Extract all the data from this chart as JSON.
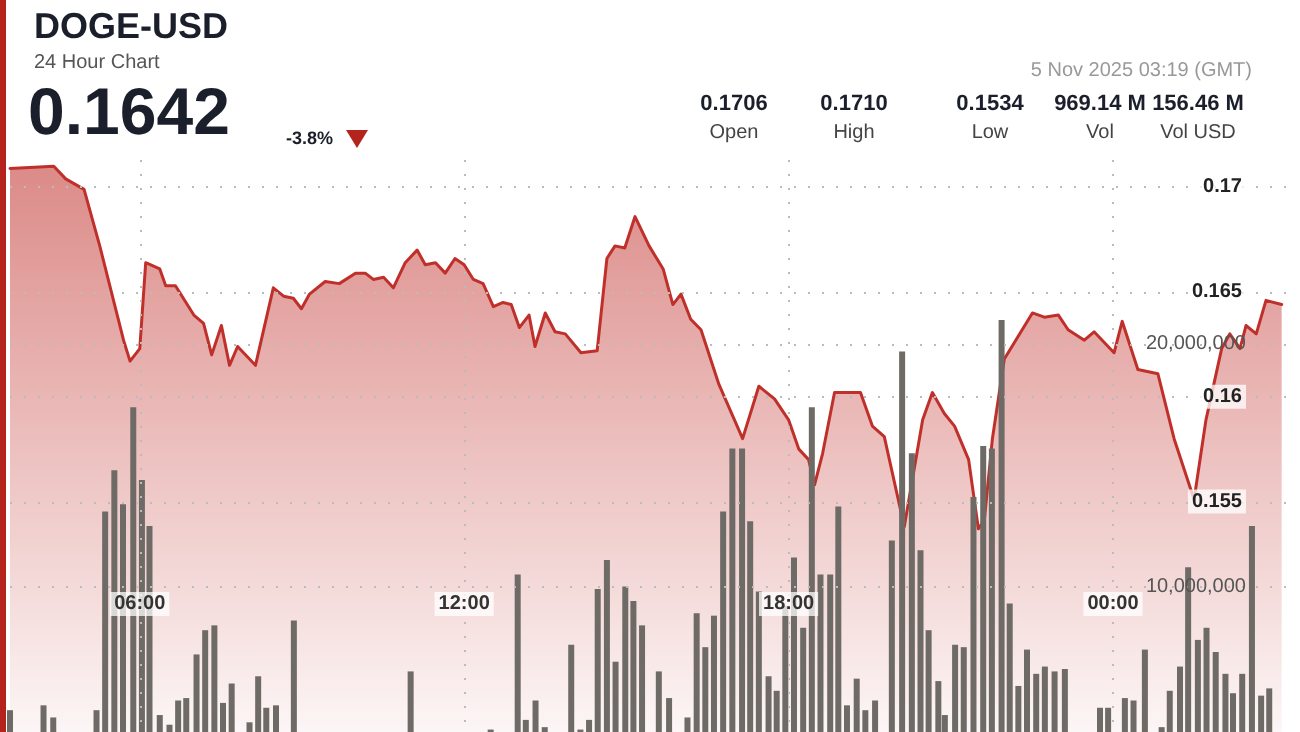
{
  "chart_data": {
    "type": "area",
    "title": "DOGE-USD",
    "subtitle": "24 Hour Chart",
    "annotations": [
      "0.1642",
      "-3.8%",
      "5 Nov 2025 03:19 (GMT)",
      "0.1706",
      "Open",
      "0.1710",
      "High",
      "0.1534",
      "Low",
      "969.14 M",
      "Vol",
      "156.46 M",
      "Vol USD"
    ],
    "xlim": [
      3.6,
      27.2
    ],
    "xticks": [
      {
        "value": 6,
        "label": "06:00"
      },
      {
        "value": 12,
        "label": "12:00"
      },
      {
        "value": 18,
        "label": "18:00"
      },
      {
        "value": 24,
        "label": "00:00"
      }
    ],
    "ylim": [
      0.144,
      0.1713
    ],
    "yticks": [
      0.155,
      0.16,
      0.165,
      0.17
    ],
    "y2lim": [
      4000000,
      27600000
    ],
    "y2ticks": [
      {
        "value": 10000000,
        "label": "10,000,000"
      },
      {
        "value": 20000000,
        "label": "20,000,000"
      }
    ],
    "grid": true,
    "marker": "none",
    "series": [
      {
        "color": "#c0302b",
        "x": [
          3.6,
          4.41,
          4.63,
          4.97,
          5.26,
          5.7,
          5.82,
          6.0,
          6.11,
          6.37,
          6.48,
          6.66,
          7.0,
          7.18,
          7.33,
          7.51,
          7.66,
          7.81,
          8.14,
          8.47,
          8.66,
          8.84,
          8.99,
          9.14,
          9.43,
          9.69,
          9.99,
          10.17,
          10.32,
          10.51,
          10.69,
          10.91,
          11.13,
          11.28,
          11.47,
          11.65,
          11.83,
          12.0,
          12.17,
          12.35,
          12.54,
          12.72,
          12.87,
          13.02,
          13.2,
          13.31,
          13.5,
          13.68,
          13.87,
          14.16,
          14.46,
          14.64,
          14.79,
          14.97,
          15.16,
          15.42,
          15.68,
          15.86,
          16.01,
          16.19,
          16.38,
          16.71,
          17.15,
          17.45,
          17.74,
          18.0,
          18.19,
          18.37,
          18.48,
          18.63,
          18.85,
          19.11,
          19.33,
          19.55,
          19.77,
          20.14,
          20.48,
          20.66,
          20.88,
          21.07,
          21.33,
          21.51,
          21.62,
          21.77,
          21.99,
          22.51,
          22.73,
          22.99,
          23.17,
          23.47,
          23.65,
          23.8,
          24.02,
          24.17,
          24.46,
          24.83,
          25.13,
          25.5,
          25.72,
          26.01,
          26.16,
          26.35,
          26.46,
          26.65,
          26.83,
          27.12
        ],
        "values": [
          0.1709,
          0.171,
          0.1704,
          0.1699,
          0.1672,
          0.1627,
          0.1617,
          0.1623,
          0.1664,
          0.1661,
          0.1653,
          0.1653,
          0.1639,
          0.1635,
          0.162,
          0.1634,
          0.1615,
          0.1624,
          0.1615,
          0.1652,
          0.1648,
          0.1647,
          0.1642,
          0.1649,
          0.1655,
          0.1654,
          0.1659,
          0.1659,
          0.1656,
          0.1657,
          0.1652,
          0.1664,
          0.167,
          0.1663,
          0.1664,
          0.1659,
          0.1666,
          0.1663,
          0.1656,
          0.1654,
          0.1643,
          0.1645,
          0.1644,
          0.1633,
          0.1639,
          0.1624,
          0.164,
          0.1631,
          0.163,
          0.1621,
          0.1622,
          0.1666,
          0.1672,
          0.1671,
          0.1686,
          0.1672,
          0.1661,
          0.1644,
          0.1649,
          0.1637,
          0.1632,
          0.1606,
          0.158,
          0.1605,
          0.1599,
          0.1589,
          0.1575,
          0.157,
          0.1558,
          0.1573,
          0.1602,
          0.1602,
          0.1602,
          0.1586,
          0.1581,
          0.1538,
          0.1589,
          0.1602,
          0.1592,
          0.1586,
          0.157,
          0.1537,
          0.1541,
          0.158,
          0.1618,
          0.164,
          0.1638,
          0.1639,
          0.1632,
          0.1627,
          0.1631,
          0.1627,
          0.1621,
          0.1636,
          0.1613,
          0.1611,
          0.158,
          0.1551,
          0.1589,
          0.1623,
          0.163,
          0.1623,
          0.1634,
          0.163,
          0.1646,
          0.1644
        ]
      },
      {
        "type": "bar",
        "axis": "y2",
        "color": "#6e6a66",
        "x": [
          3.6,
          4.22,
          4.4,
          5.2,
          5.36,
          5.53,
          5.69,
          5.88,
          6.04,
          6.18,
          6.37,
          6.55,
          6.71,
          6.86,
          7.05,
          7.21,
          7.38,
          7.54,
          7.7,
          8.03,
          8.19,
          8.34,
          8.52,
          8.85,
          11.01,
          12.49,
          12.99,
          13.14,
          13.32,
          13.49,
          13.98,
          14.15,
          14.31,
          14.47,
          14.64,
          14.8,
          14.98,
          15.13,
          15.29,
          15.6,
          15.79,
          16.13,
          16.3,
          16.46,
          16.62,
          16.79,
          16.96,
          17.14,
          17.29,
          17.45,
          17.63,
          17.78,
          17.94,
          18.1,
          18.27,
          18.43,
          18.59,
          18.77,
          18.92,
          19.08,
          19.26,
          19.42,
          19.6,
          19.91,
          20.1,
          20.28,
          20.44,
          20.59,
          20.77,
          20.89,
          21.08,
          21.24,
          21.42,
          21.6,
          21.76,
          21.94,
          22.09,
          22.25,
          22.41,
          22.58,
          22.74,
          22.92,
          23.11,
          23.76,
          23.91,
          24.22,
          24.38,
          24.59,
          24.9,
          25.05,
          25.24,
          25.39,
          25.57,
          25.73,
          25.9,
          26.08,
          26.22,
          26.39,
          26.57,
          26.74,
          26.89
        ],
        "values": [
          4900000,
          5100000,
          4600000,
          4900000,
          13100000,
          14800000,
          13400000,
          17400000,
          14400000,
          12500000,
          4700000,
          4300000,
          5300000,
          5400000,
          7200000,
          8200000,
          8400000,
          5200000,
          6000000,
          4400000,
          6300000,
          5000000,
          5100000,
          8600000,
          6500000,
          4100000,
          10500000,
          4500000,
          5300000,
          4200000,
          7600000,
          4100000,
          4500000,
          9900000,
          11100000,
          6900000,
          10000000,
          9400000,
          8400000,
          6500000,
          5400000,
          4600000,
          8900000,
          7500000,
          8800000,
          13100000,
          15700000,
          15700000,
          12700000,
          9800000,
          6300000,
          5700000,
          9200000,
          11200000,
          8300000,
          17400000,
          10500000,
          10500000,
          13300000,
          5100000,
          6200000,
          4900000,
          5300000,
          11900000,
          19700000,
          15500000,
          11500000,
          8200000,
          6100000,
          4700000,
          7600000,
          7500000,
          13700000,
          15800000,
          15700000,
          21000000,
          9300000,
          5900000,
          7400000,
          6400000,
          6700000,
          6500000,
          6600000,
          5000000,
          5000000,
          5400000,
          5300000,
          7400000,
          4200000,
          5700000,
          6700000,
          10800000,
          7800000,
          8300000,
          7300000,
          6400000,
          5600000,
          6400000,
          12500000,
          5500000,
          5800000
        ]
      }
    ]
  }
}
